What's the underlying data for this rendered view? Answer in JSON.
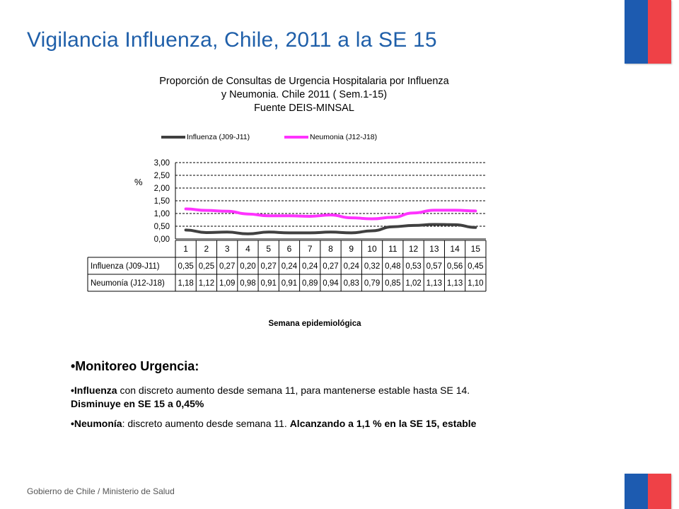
{
  "slide": {
    "title": "Vigilancia Influenza, Chile, 2011 a la SE 15",
    "footer": "Gobierno de Chile / Ministerio de Salud"
  },
  "colors": {
    "title_blue": "#1f5fa9",
    "flag_blue": "#1d5bb0",
    "flag_red": "#ef4147",
    "influenza_series": "#404040",
    "neumonia_series": "#ff33ff"
  },
  "chart_data": {
    "type": "line",
    "title_lines": [
      "Proporción de Consultas de Urgencia Hospitalaria por Influenza",
      "y Neumonia. Chile 2011 ( Sem.1-15)",
      "Fuente DEIS-MINSAL"
    ],
    "ylabel": "%",
    "xlabel": "Semana epidemiológica",
    "ylim": [
      0,
      3
    ],
    "yticks": [
      "3,00",
      "2,50",
      "2,00",
      "1,50",
      "1,00",
      "0,50",
      "0,00"
    ],
    "grid": "dashed horizontal",
    "legend_position": "top",
    "categories": [
      "1",
      "2",
      "3",
      "4",
      "5",
      "6",
      "7",
      "8",
      "9",
      "10",
      "11",
      "12",
      "13",
      "14",
      "15"
    ],
    "series": [
      {
        "name": "Influenza (J09-J11)",
        "values": [
          0.35,
          0.25,
          0.27,
          0.2,
          0.27,
          0.24,
          0.24,
          0.27,
          0.24,
          0.32,
          0.48,
          0.53,
          0.57,
          0.56,
          0.45
        ],
        "labels": [
          "0,35",
          "0,25",
          "0,27",
          "0,20",
          "0,27",
          "0,24",
          "0,24",
          "0,27",
          "0,24",
          "0,32",
          "0,48",
          "0,53",
          "0,57",
          "0,56",
          "0,45"
        ]
      },
      {
        "name": "Neumonía (J12-J18)",
        "legend_label": "Neumonia (J12-J18)",
        "values": [
          1.18,
          1.12,
          1.09,
          0.98,
          0.91,
          0.91,
          0.89,
          0.94,
          0.83,
          0.79,
          0.85,
          1.02,
          1.13,
          1.13,
          1.1
        ],
        "labels": [
          "1,18",
          "1,12",
          "1,09",
          "0,98",
          "0,91",
          "0,91",
          "0,89",
          "0,94",
          "0,83",
          "0,79",
          "0,85",
          "1,02",
          "1,13",
          "1,13",
          "1,10"
        ]
      }
    ]
  },
  "bullets": {
    "heading": "•Monitoreo Urgencia:",
    "item1": {
      "bold1": "•Influenza",
      "text1": " con  discreto aumento desde semana 11, para mantenerse estable hasta SE 14.",
      "bold2": "Disminuye en SE  15 a  0,45%"
    },
    "item2": {
      "bold1": "•Neumonía",
      "text1": ": discreto aumento desde semana 11. ",
      "bold2": "Alcanzando a 1,1 % en la SE 15, estable"
    }
  }
}
